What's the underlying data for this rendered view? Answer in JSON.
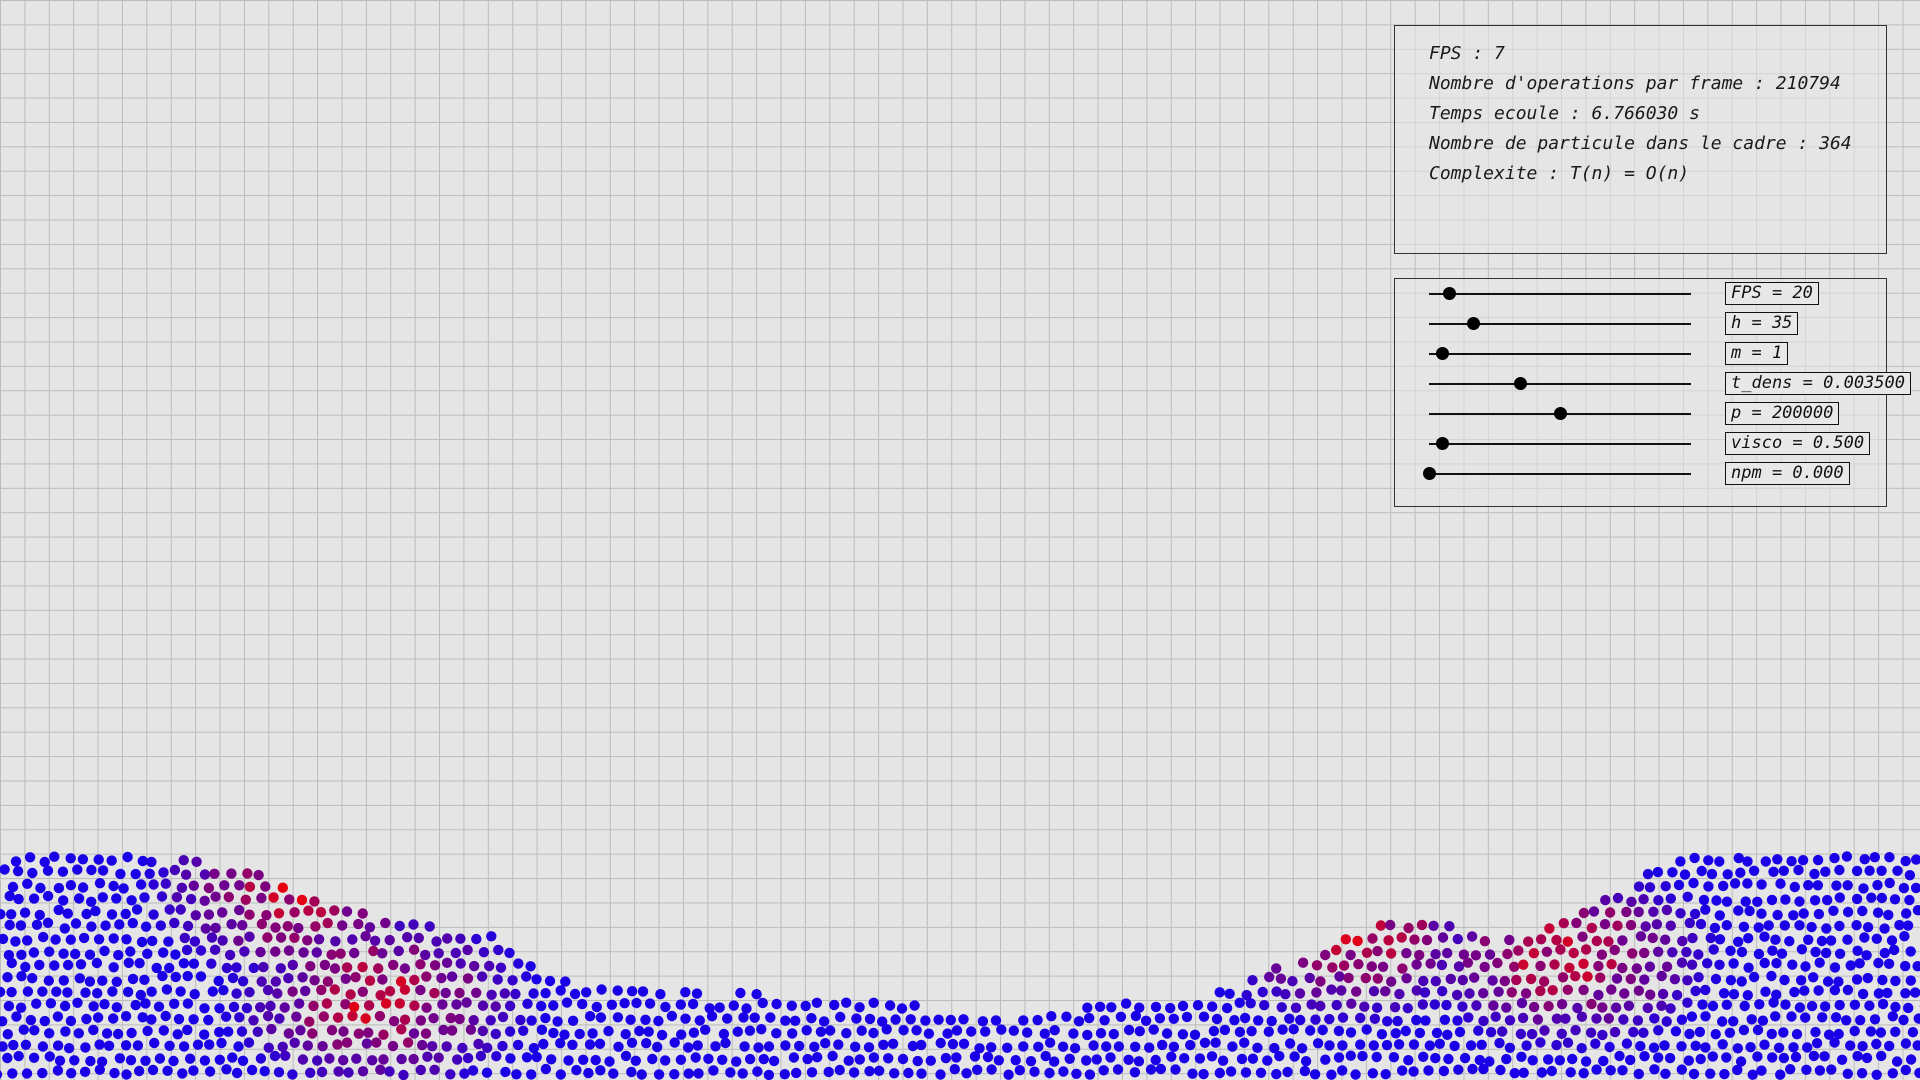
{
  "stats": [
    "FPS : 7",
    "Nombre d'operations par frame : 210794",
    "Temps ecoule : 6.766030 s",
    "Nombre de particule dans le cadre : 364",
    "Complexite : T(n) = O(n)"
  ],
  "sliders": [
    {
      "name": "fps",
      "label": "FPS = 20",
      "fraction": 0.08
    },
    {
      "name": "h",
      "label": "h = 35",
      "fraction": 0.17
    },
    {
      "name": "m",
      "label": "m = 1",
      "fraction": 0.05
    },
    {
      "name": "t-dens",
      "label": "t_dens = 0.003500",
      "fraction": 0.35
    },
    {
      "name": "p",
      "label": "p = 200000",
      "fraction": 0.5
    },
    {
      "name": "visco",
      "label": "visco = 0.500",
      "fraction": 0.05
    },
    {
      "name": "npm",
      "label": "npm = 0.000",
      "fraction": 0.0
    }
  ],
  "colors": {
    "particle_low": "#1a00e6",
    "particle_high": "#e60012",
    "grid": "#bcbcbc",
    "background": "#e5e5e5"
  }
}
